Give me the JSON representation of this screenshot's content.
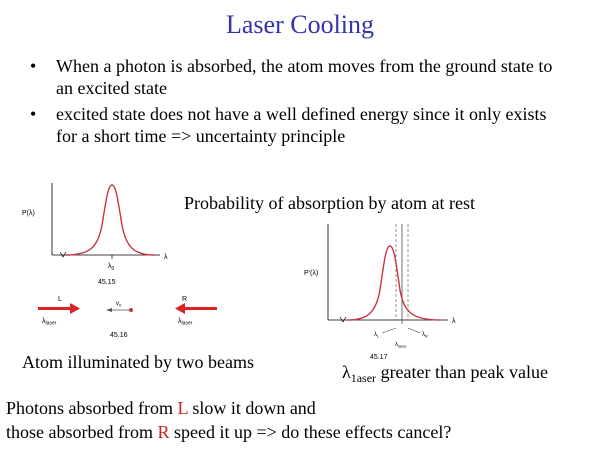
{
  "slide": {
    "title": "Laser Cooling",
    "bullets": [
      "When a photon is absorbed, the atom moves from the ground state to an excited state",
      "excited state does not have a well defined energy since it only exists for a short time => uncertainty principle"
    ],
    "caption_probability": "Probability of absorption by atom at rest",
    "caption_two_beams": "Atom illuminated by two beams",
    "caption_laser_symbol": "λ",
    "caption_laser_sub": "1aser",
    "caption_laser_rest": " greater than peak value",
    "bottom_line1_pre": "Photons absorbed from ",
    "bottom_line1_L": "L",
    "bottom_line1_post": " slow it down and",
    "bottom_line2_pre": "those absorbed from ",
    "bottom_line2_R": "R",
    "bottom_line2_post": " speed it up => do these effects cancel?"
  },
  "figure_left": {
    "y_label": "P(λ)",
    "x_label": "λ",
    "peak_label": "λ",
    "peak_sub": "0",
    "fig_number": "45.15"
  },
  "beams": {
    "left_label": "L",
    "right_label": "R",
    "left_wavelength": "λ",
    "left_wavelength_sub": "laser",
    "right_wavelength": "λ",
    "right_wavelength_sub": "laser",
    "velocity_label": "v",
    "velocity_sub": "0",
    "fig_number": "45.16"
  },
  "figure_right": {
    "y_label": "P'(λ)",
    "x_label": "λ",
    "lambda_L": "λ",
    "lambda_L_sub": "L",
    "lambda_R": "λ",
    "lambda_R_sub": "R",
    "lambda_laser": "λ",
    "lambda_laser_sub": "laser",
    "fig_number": "45.17"
  },
  "colors": {
    "title": "#3333aa",
    "curve": "#cc3344",
    "arrow": "#dd2222",
    "accent_letter": "#cc2222"
  }
}
